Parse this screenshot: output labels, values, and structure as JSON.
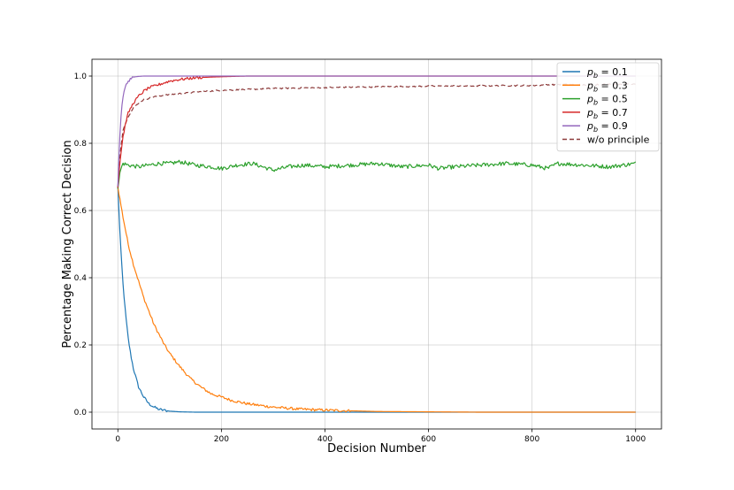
{
  "chart_data": {
    "type": "line",
    "title": "",
    "xlabel": "Decision Number",
    "ylabel": "Percentage Making Correct Decision",
    "xlim": [
      -50,
      1050
    ],
    "ylim": [
      -0.05,
      1.05
    ],
    "xticks": [
      0,
      200,
      400,
      600,
      800,
      1000
    ],
    "xtick_labels": [
      "0",
      "200",
      "400",
      "600",
      "800",
      "1000"
    ],
    "yticks": [
      0.0,
      0.2,
      0.4,
      0.6,
      0.8,
      1.0
    ],
    "ytick_labels": [
      "0.0",
      "0.2",
      "0.4",
      "0.6",
      "0.8",
      "1.0"
    ],
    "grid": true,
    "legend_position": "top-right",
    "series": [
      {
        "key": "pb01",
        "legend_main": "p",
        "legend_sub": "b",
        "legend_rest": " = 0.1",
        "color": "#1f77b4",
        "dash": "",
        "x": [
          0,
          5,
          10,
          15,
          20,
          25,
          30,
          40,
          50,
          60,
          70,
          80,
          100,
          120,
          150,
          200,
          300,
          400,
          500,
          600,
          700,
          800,
          900,
          1000
        ],
        "y": [
          0.67,
          0.5,
          0.38,
          0.29,
          0.22,
          0.17,
          0.13,
          0.075,
          0.045,
          0.025,
          0.015,
          0.008,
          0.003,
          0.001,
          0.0,
          0.0,
          0.0,
          0.0,
          0.0,
          0.0,
          0.0,
          0.0,
          0.0,
          0.0
        ]
      },
      {
        "key": "pb03",
        "legend_main": "p",
        "legend_sub": "b",
        "legend_rest": " = 0.3",
        "color": "#ff7f0e",
        "dash": "",
        "x": [
          0,
          10,
          20,
          30,
          40,
          50,
          60,
          70,
          80,
          90,
          100,
          120,
          140,
          160,
          180,
          200,
          220,
          250,
          300,
          350,
          400,
          450,
          500,
          600,
          700,
          800,
          900,
          1000
        ],
        "y": [
          0.67,
          0.58,
          0.5,
          0.44,
          0.39,
          0.34,
          0.3,
          0.26,
          0.23,
          0.2,
          0.175,
          0.135,
          0.1,
          0.075,
          0.055,
          0.045,
          0.035,
          0.025,
          0.015,
          0.009,
          0.006,
          0.004,
          0.002,
          0.001,
          0.0,
          0.0,
          0.0,
          0.0
        ]
      },
      {
        "key": "pb05",
        "legend_main": "p",
        "legend_sub": "b",
        "legend_rest": " = 0.5",
        "color": "#2ca02c",
        "dash": "",
        "x": [
          0,
          5,
          10,
          20,
          40,
          60,
          80,
          100,
          120,
          150,
          180,
          200,
          230,
          260,
          280,
          300,
          330,
          360,
          400,
          450,
          500,
          550,
          600,
          620,
          650,
          700,
          750,
          800,
          830,
          850,
          900,
          950,
          1000
        ],
        "y": [
          0.67,
          0.72,
          0.74,
          0.735,
          0.73,
          0.735,
          0.74,
          0.74,
          0.745,
          0.735,
          0.73,
          0.725,
          0.735,
          0.74,
          0.73,
          0.72,
          0.73,
          0.735,
          0.73,
          0.735,
          0.74,
          0.73,
          0.735,
          0.725,
          0.73,
          0.735,
          0.74,
          0.735,
          0.725,
          0.74,
          0.735,
          0.73,
          0.74
        ]
      },
      {
        "key": "pb07",
        "legend_main": "p",
        "legend_sub": "b",
        "legend_rest": " = 0.7",
        "color": "#d62728",
        "dash": "",
        "x": [
          0,
          5,
          10,
          15,
          20,
          30,
          40,
          50,
          60,
          80,
          100,
          120,
          150,
          180,
          200,
          250,
          300,
          400,
          500,
          600,
          700,
          800,
          900,
          1000
        ],
        "y": [
          0.67,
          0.76,
          0.82,
          0.86,
          0.89,
          0.92,
          0.94,
          0.955,
          0.965,
          0.975,
          0.985,
          0.99,
          0.995,
          0.997,
          0.998,
          1.0,
          1.0,
          1.0,
          1.0,
          1.0,
          1.0,
          1.0,
          1.0,
          1.0
        ]
      },
      {
        "key": "pb09",
        "legend_main": "p",
        "legend_sub": "b",
        "legend_rest": " = 0.9",
        "color": "#9467bd",
        "dash": "",
        "x": [
          0,
          3,
          6,
          10,
          15,
          20,
          25,
          30,
          40,
          50,
          70,
          100,
          200,
          400,
          600,
          800,
          1000
        ],
        "y": [
          0.67,
          0.8,
          0.88,
          0.94,
          0.97,
          0.985,
          0.993,
          0.997,
          0.999,
          1.0,
          1.0,
          1.0,
          1.0,
          1.0,
          1.0,
          1.0,
          1.0
        ]
      },
      {
        "key": "wo",
        "legend_main": "w/o principle",
        "legend_sub": "",
        "legend_rest": "",
        "color": "#8c3a3a",
        "dash": "5,3",
        "x": [
          0,
          5,
          10,
          20,
          30,
          40,
          50,
          75,
          100,
          150,
          200,
          250,
          300,
          400,
          500,
          600,
          700,
          800,
          850,
          900,
          950,
          1000
        ],
        "y": [
          0.67,
          0.78,
          0.84,
          0.88,
          0.905,
          0.92,
          0.93,
          0.94,
          0.945,
          0.952,
          0.958,
          0.96,
          0.963,
          0.966,
          0.968,
          0.97,
          0.971,
          0.972,
          0.975,
          0.974,
          0.976,
          0.977
        ]
      }
    ]
  }
}
